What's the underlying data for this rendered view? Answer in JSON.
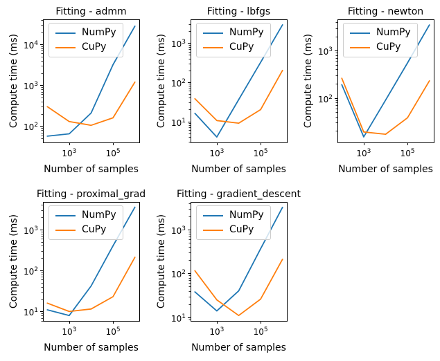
{
  "figure": {
    "background": "#ffffff",
    "text_color": "#000000",
    "xlabel": "Number of samples",
    "ylabel": "Compute time (ms)",
    "legend_labels": [
      "NumPy",
      "CuPy"
    ],
    "colors": {
      "numpy": "#1f77b4",
      "cupy": "#ff7f0e",
      "legend_border": "#cccccc"
    }
  },
  "chart_data": [
    {
      "type": "line",
      "title": "Fitting - admm",
      "xlabel": "Number of samples",
      "ylabel": "Compute time (ms)",
      "xscale": "log",
      "yscale": "log",
      "grid": false,
      "legend_position": "upper left",
      "x": [
        100,
        1000,
        10000,
        100000,
        1000000
      ],
      "series": [
        {
          "name": "NumPy",
          "color": "#1f77b4",
          "values": [
            57,
            65,
            210,
            3200,
            28000
          ]
        },
        {
          "name": "CuPy",
          "color": "#ff7f0e",
          "values": [
            300,
            130,
            105,
            160,
            1200
          ]
        }
      ],
      "xlim": [
        63.1,
        1584893
      ],
      "ylim": [
        40,
        41000
      ],
      "xticks": [
        1000,
        100000
      ],
      "yticks": [
        100,
        1000,
        10000
      ]
    },
    {
      "type": "line",
      "title": "Fitting - lbfgs",
      "xlabel": "Number of samples",
      "ylabel": "Compute time (ms)",
      "xscale": "log",
      "yscale": "log",
      "grid": false,
      "legend_position": "upper left",
      "x": [
        100,
        1000,
        10000,
        100000,
        1000000
      ],
      "series": [
        {
          "name": "NumPy",
          "color": "#1f77b4",
          "values": [
            16,
            4,
            36,
            320,
            2900
          ]
        },
        {
          "name": "CuPy",
          "color": "#ff7f0e",
          "values": [
            38,
            10.5,
            9,
            20,
            200
          ]
        }
      ],
      "xlim": [
        63.1,
        1584893
      ],
      "ylim": [
        2.9,
        4000
      ],
      "xticks": [
        1000,
        100000
      ],
      "yticks": [
        10,
        100,
        1000
      ]
    },
    {
      "type": "line",
      "title": "Fitting - newton",
      "xlabel": "Number of samples",
      "ylabel": "Compute time (ms)",
      "xscale": "log",
      "yscale": "log",
      "grid": false,
      "legend_position": "upper left",
      "x": [
        100,
        1000,
        10000,
        100000,
        1000000
      ],
      "series": [
        {
          "name": "NumPy",
          "color": "#1f77b4",
          "values": [
            190,
            15,
            90,
            550,
            3500
          ]
        },
        {
          "name": "CuPy",
          "color": "#ff7f0e",
          "values": [
            260,
            19,
            17,
            38,
            230
          ]
        }
      ],
      "xlim": [
        63.1,
        1584893
      ],
      "ylim": [
        11.4,
        4600
      ],
      "xticks": [
        1000,
        100000
      ],
      "yticks": [
        100,
        1000
      ]
    },
    {
      "type": "line",
      "title": "Fitting - proximal_grad",
      "xlabel": "Number of samples",
      "ylabel": "Compute time (ms)",
      "xscale": "log",
      "yscale": "log",
      "grid": false,
      "legend_position": "upper left",
      "x": [
        100,
        1000,
        10000,
        100000,
        1000000
      ],
      "series": [
        {
          "name": "NumPy",
          "color": "#1f77b4",
          "values": [
            11,
            8,
            42,
            400,
            3500
          ]
        },
        {
          "name": "CuPy",
          "color": "#ff7f0e",
          "values": [
            16,
            10,
            11.5,
            23,
            210
          ]
        }
      ],
      "xlim": [
        63.1,
        1584893
      ],
      "ylim": [
        5.9,
        4700
      ],
      "xticks": [
        1000,
        100000
      ],
      "yticks": [
        10,
        100,
        1000
      ]
    },
    {
      "type": "line",
      "title": "Fitting - gradient_descent",
      "xlabel": "Number of samples",
      "ylabel": "Compute time (ms)",
      "xscale": "log",
      "yscale": "log",
      "grid": false,
      "legend_position": "upper left",
      "x": [
        100,
        1000,
        10000,
        100000,
        1000000
      ],
      "series": [
        {
          "name": "NumPy",
          "color": "#1f77b4",
          "values": [
            38,
            14,
            40,
            365,
            3200
          ]
        },
        {
          "name": "CuPy",
          "color": "#ff7f0e",
          "values": [
            115,
            25,
            11,
            26,
            210
          ]
        }
      ],
      "xlim": [
        63.1,
        1584893
      ],
      "ylim": [
        8.3,
        4250
      ],
      "xticks": [
        1000,
        100000
      ],
      "yticks": [
        10,
        100,
        1000
      ]
    }
  ]
}
